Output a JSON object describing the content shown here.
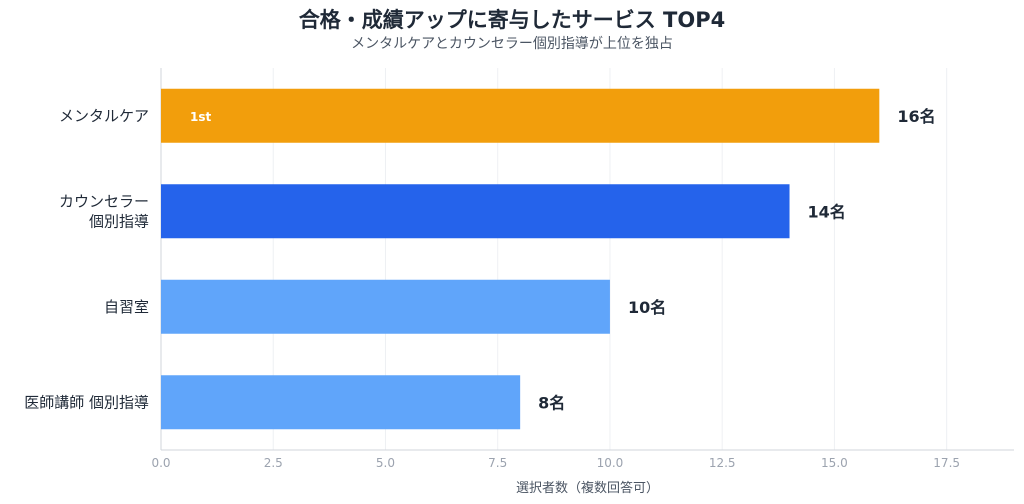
{
  "chart_data": {
    "type": "bar",
    "orientation": "horizontal",
    "title": "合格・成績アップに寄与したサービス TOP4",
    "subtitle": "メンタルケアとカウンセラー個別指導が上位を独占",
    "categories": [
      [
        "メンタルケア"
      ],
      [
        "カウンセラー",
        "個別指導"
      ],
      [
        "自習室"
      ],
      [
        "医師講師 個別指導"
      ]
    ],
    "values": [
      16,
      14,
      10,
      8
    ],
    "value_labels": [
      "16名",
      "14名",
      "10名",
      "8名"
    ],
    "colors": [
      "#f29e0c",
      "#2563eb",
      "#60a5fa",
      "#60a5fa"
    ],
    "badge": "1st",
    "xlabel": "選択者数（複数回答可）",
    "xlim": [
      0,
      19
    ],
    "xticks": [
      0,
      2.5,
      5,
      7.5,
      10,
      12.5,
      15,
      17.5
    ],
    "xtick_labels": [
      "0.0",
      "2.5",
      "5.0",
      "7.5",
      "10.0",
      "12.5",
      "15.0",
      "17.5"
    ],
    "grid": true
  }
}
